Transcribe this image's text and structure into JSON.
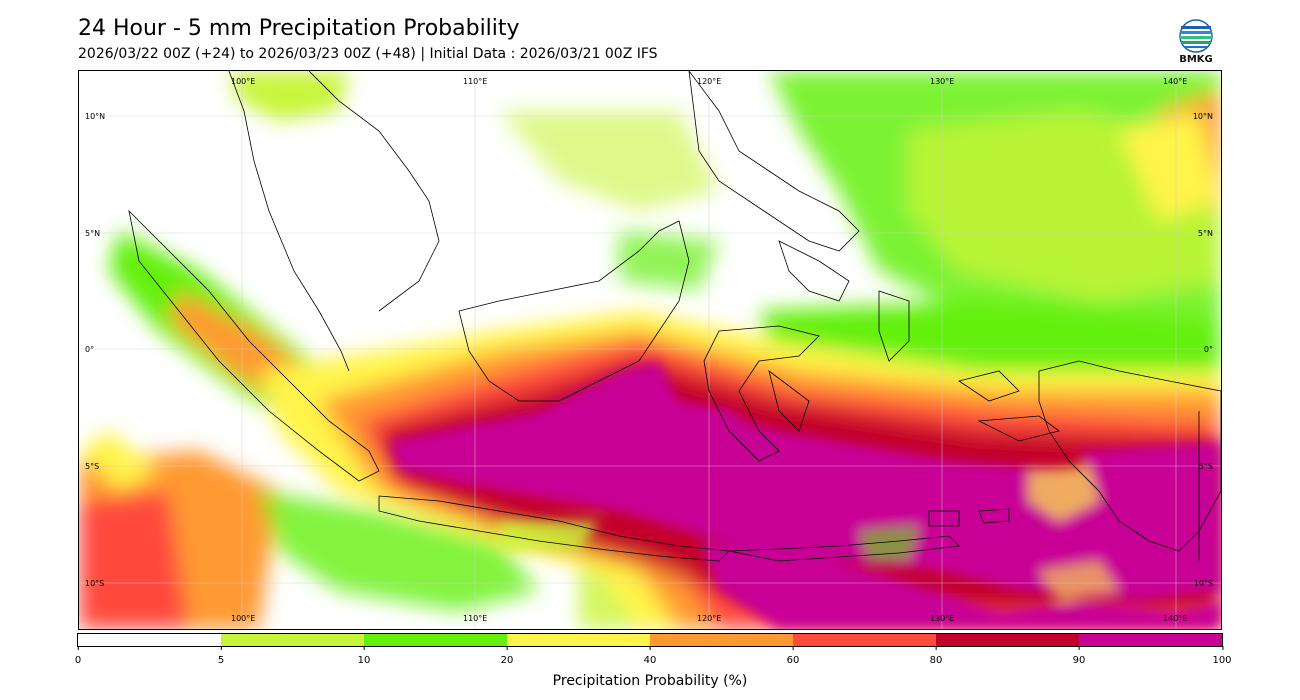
{
  "header": {
    "title": "24 Hour - 5 mm Precipitation Probability",
    "subtitle": "2026/03/22 00Z (+24) to 2026/03/23 00Z (+48) | Initial Data : 2026/03/21 00Z IFS"
  },
  "logo": {
    "icon": "bmkg-logo-icon",
    "text": "BMKG"
  },
  "map": {
    "lon_labels_top": [
      "100°E",
      "110°E",
      "120°E",
      "130°E",
      "140°E"
    ],
    "lon_labels_bottom": [
      "100°E",
      "110°E",
      "120°E",
      "130°E",
      "140°E"
    ],
    "lat_labels_left": [
      "10°N",
      "5°N",
      "0°",
      "5°S",
      "10°S"
    ],
    "lat_labels_right": [
      "10°N",
      "5°N",
      "0°",
      "5°S",
      "10°S"
    ]
  },
  "legend": {
    "label": "Precipitation Probability (%)",
    "ticks": [
      "0",
      "5",
      "10",
      "20",
      "40",
      "60",
      "80",
      "90",
      "100"
    ],
    "colors": [
      "#ffffff",
      "#c8f53a",
      "#64f00a",
      "#fff44a",
      "#ff9a32",
      "#ff4a3c",
      "#c4002a",
      "#c80096"
    ]
  }
}
